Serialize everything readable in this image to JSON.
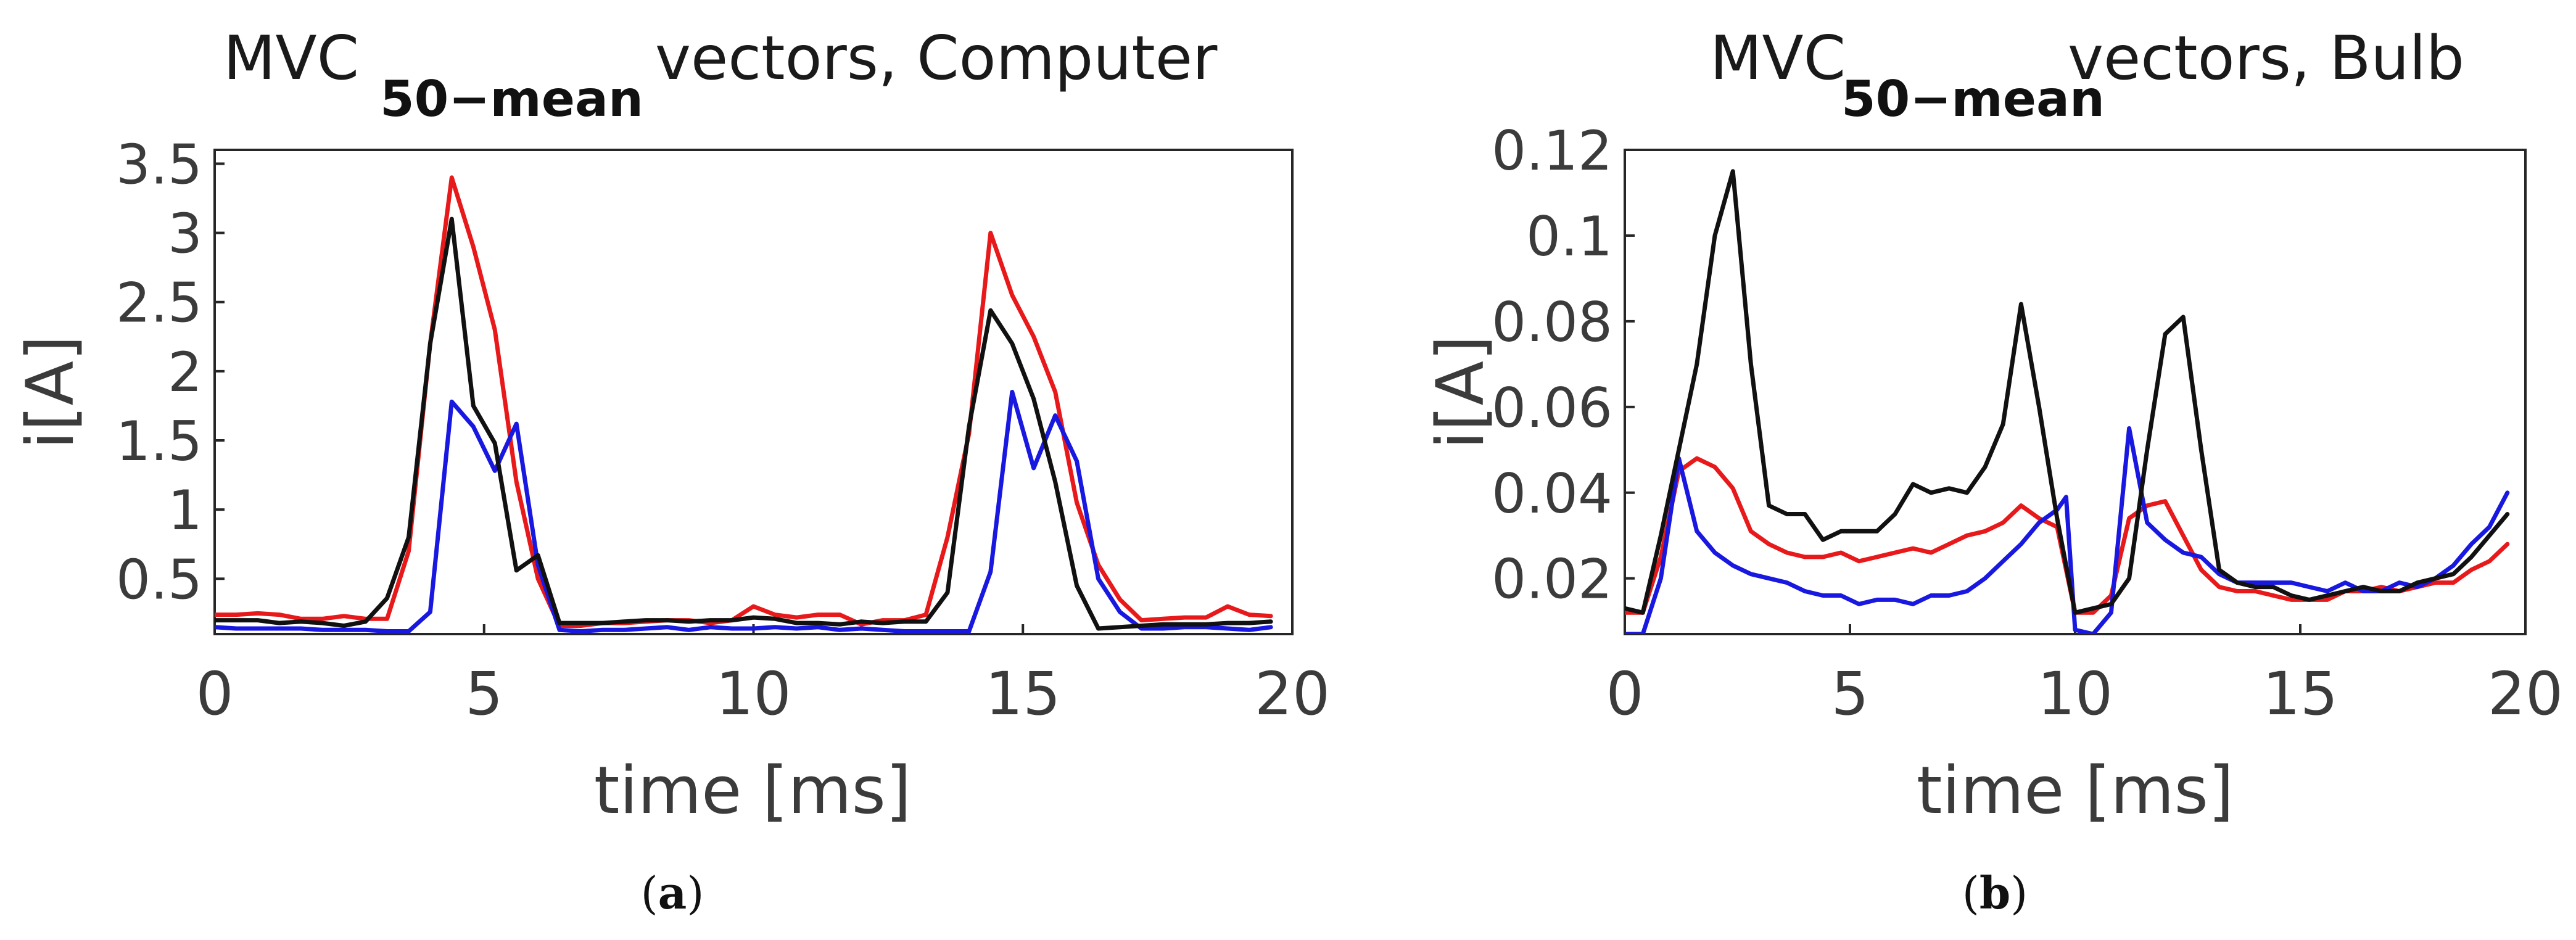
{
  "chart_data": [
    {
      "type": "line",
      "title_main": "MVC",
      "title_sub": "50−mean",
      "title_tail": "vectors, Computer",
      "xlabel": "time [ms]",
      "ylabel": "i[A]",
      "caption": "(a)",
      "xlim": [
        0,
        20
      ],
      "ylim": [
        0.1,
        3.6
      ],
      "xticks": [
        0,
        5,
        10,
        15,
        20
      ],
      "xtick_labels": [
        "0",
        "5",
        "10",
        "15",
        "20"
      ],
      "yticks": [
        0.5,
        1,
        1.5,
        2,
        2.5,
        3,
        3.5
      ],
      "ytick_labels": [
        "0.5",
        "1",
        "1.5",
        "2",
        "2.5",
        "3",
        "3.5"
      ],
      "grid": false,
      "series": [
        {
          "name": "red",
          "color": "#e8191a",
          "x": [
            0,
            0.4,
            0.8,
            1.2,
            1.6,
            2,
            2.4,
            2.8,
            3.2,
            3.6,
            4,
            4.4,
            4.8,
            5.2,
            5.6,
            6,
            6.4,
            6.8,
            7.2,
            7.6,
            8,
            8.4,
            8.8,
            9.2,
            9.6,
            10,
            10.4,
            10.8,
            11.2,
            11.6,
            12,
            12.4,
            12.8,
            13.2,
            13.6,
            14,
            14.4,
            14.8,
            15.2,
            15.6,
            16,
            16.4,
            16.8,
            17.2,
            17.6,
            18,
            18.4,
            18.8,
            19.2,
            19.6
          ],
          "y": [
            0.24,
            0.24,
            0.25,
            0.24,
            0.21,
            0.21,
            0.23,
            0.21,
            0.21,
            0.7,
            2.2,
            3.4,
            2.9,
            2.3,
            1.2,
            0.5,
            0.16,
            0.16,
            0.18,
            0.18,
            0.19,
            0.2,
            0.2,
            0.18,
            0.2,
            0.3,
            0.24,
            0.22,
            0.24,
            0.24,
            0.17,
            0.2,
            0.2,
            0.24,
            0.8,
            1.55,
            3.0,
            2.55,
            2.25,
            1.85,
            1.05,
            0.6,
            0.35,
            0.2,
            0.21,
            0.22,
            0.22,
            0.3,
            0.24,
            0.23
          ]
        },
        {
          "name": "blue",
          "color": "#1818e0",
          "x": [
            0,
            0.4,
            0.8,
            1.2,
            1.6,
            2,
            2.4,
            2.8,
            3.2,
            3.6,
            4,
            4.4,
            4.8,
            5.2,
            5.6,
            6,
            6.4,
            6.8,
            7.2,
            7.6,
            8,
            8.4,
            8.8,
            9.2,
            9.6,
            10,
            10.4,
            10.8,
            11.2,
            11.6,
            12,
            12.4,
            12.8,
            13.2,
            13.6,
            14,
            14.4,
            14.8,
            15.2,
            15.6,
            16,
            16.4,
            16.8,
            17.2,
            17.6,
            18,
            18.4,
            18.8,
            19.2,
            19.6
          ],
          "y": [
            0.15,
            0.14,
            0.14,
            0.14,
            0.14,
            0.13,
            0.13,
            0.13,
            0.12,
            0.12,
            0.26,
            1.78,
            1.6,
            1.28,
            1.62,
            0.6,
            0.13,
            0.12,
            0.13,
            0.13,
            0.14,
            0.15,
            0.13,
            0.15,
            0.14,
            0.14,
            0.15,
            0.14,
            0.15,
            0.13,
            0.14,
            0.13,
            0.12,
            0.12,
            0.12,
            0.12,
            0.55,
            1.85,
            1.3,
            1.68,
            1.35,
            0.5,
            0.26,
            0.14,
            0.14,
            0.15,
            0.15,
            0.14,
            0.13,
            0.15
          ]
        },
        {
          "name": "black",
          "color": "#111111",
          "x": [
            0,
            0.4,
            0.8,
            1.2,
            1.6,
            2,
            2.4,
            2.8,
            3.2,
            3.6,
            4,
            4.4,
            4.8,
            5.2,
            5.6,
            6,
            6.4,
            6.8,
            7.2,
            7.6,
            8,
            8.4,
            8.8,
            9.2,
            9.6,
            10,
            10.4,
            10.8,
            11.2,
            11.6,
            12,
            12.4,
            12.8,
            13.2,
            13.6,
            14,
            14.4,
            14.8,
            15.2,
            15.6,
            16,
            16.4,
            16.8,
            17.2,
            17.6,
            18,
            18.4,
            18.8,
            19.2,
            19.6
          ],
          "y": [
            0.2,
            0.2,
            0.2,
            0.18,
            0.19,
            0.18,
            0.16,
            0.19,
            0.36,
            0.8,
            2.2,
            3.1,
            1.75,
            1.48,
            0.56,
            0.67,
            0.18,
            0.18,
            0.18,
            0.19,
            0.2,
            0.2,
            0.19,
            0.2,
            0.2,
            0.22,
            0.21,
            0.18,
            0.18,
            0.17,
            0.19,
            0.18,
            0.19,
            0.19,
            0.4,
            1.6,
            2.44,
            2.2,
            1.8,
            1.2,
            0.45,
            0.14,
            0.15,
            0.16,
            0.17,
            0.17,
            0.17,
            0.18,
            0.18,
            0.19
          ]
        }
      ]
    },
    {
      "type": "line",
      "title_main": "MVC",
      "title_sub": "50−mean",
      "title_tail": "vectors, Bulb",
      "xlabel": "time [ms]",
      "ylabel": "i[A]",
      "caption": "(b)",
      "xlim": [
        0,
        20
      ],
      "ylim": [
        0.007,
        0.12
      ],
      "xticks": [
        0,
        5,
        10,
        15,
        20
      ],
      "xtick_labels": [
        "0",
        "5",
        "10",
        "15",
        "20"
      ],
      "yticks": [
        0.02,
        0.04,
        0.06,
        0.08,
        0.1,
        0.12
      ],
      "ytick_labels": [
        "0.02",
        "0.04",
        "0.06",
        "0.08",
        "0.1",
        "0.12"
      ],
      "grid": false,
      "series": [
        {
          "name": "red",
          "color": "#e8191a",
          "x": [
            0,
            0.4,
            0.8,
            1.2,
            1.6,
            2,
            2.4,
            2.8,
            3.2,
            3.6,
            4,
            4.4,
            4.8,
            5.2,
            5.6,
            6,
            6.4,
            6.8,
            7.2,
            7.6,
            8,
            8.4,
            8.8,
            9.2,
            9.6,
            10,
            10.4,
            10.8,
            11.2,
            11.6,
            12,
            12.4,
            12.8,
            13.2,
            13.6,
            14,
            14.4,
            14.8,
            15.2,
            15.6,
            16,
            16.4,
            16.8,
            17.2,
            17.6,
            18,
            18.4,
            18.8,
            19.2,
            19.6
          ],
          "y": [
            0.012,
            0.012,
            0.025,
            0.045,
            0.048,
            0.046,
            0.041,
            0.031,
            0.028,
            0.026,
            0.025,
            0.025,
            0.026,
            0.024,
            0.025,
            0.026,
            0.027,
            0.026,
            0.028,
            0.03,
            0.031,
            0.033,
            0.037,
            0.034,
            0.032,
            0.012,
            0.012,
            0.016,
            0.034,
            0.037,
            0.038,
            0.03,
            0.022,
            0.018,
            0.017,
            0.017,
            0.016,
            0.015,
            0.015,
            0.015,
            0.017,
            0.017,
            0.018,
            0.017,
            0.018,
            0.019,
            0.019,
            0.022,
            0.024,
            0.028
          ]
        },
        {
          "name": "blue",
          "color": "#1818e0",
          "x": [
            0,
            0.4,
            0.8,
            1.2,
            1.6,
            2,
            2.4,
            2.8,
            3.2,
            3.6,
            4,
            4.4,
            4.8,
            5.2,
            5.6,
            6,
            6.4,
            6.8,
            7.2,
            7.6,
            8,
            8.4,
            8.8,
            9.2,
            9.6,
            9.8,
            10,
            10.4,
            10.8,
            11.2,
            11.6,
            12,
            12.4,
            12.8,
            13.2,
            13.6,
            14,
            14.4,
            14.8,
            15.2,
            15.6,
            16,
            16.4,
            16.8,
            17.2,
            17.6,
            18,
            18.4,
            18.8,
            19.2,
            19.6
          ],
          "y": [
            0.007,
            0.007,
            0.02,
            0.048,
            0.031,
            0.026,
            0.023,
            0.021,
            0.02,
            0.019,
            0.017,
            0.016,
            0.016,
            0.014,
            0.015,
            0.015,
            0.014,
            0.016,
            0.016,
            0.017,
            0.02,
            0.024,
            0.028,
            0.033,
            0.036,
            0.039,
            0.008,
            0.007,
            0.012,
            0.055,
            0.033,
            0.029,
            0.026,
            0.025,
            0.021,
            0.019,
            0.019,
            0.019,
            0.019,
            0.018,
            0.017,
            0.019,
            0.017,
            0.017,
            0.019,
            0.018,
            0.02,
            0.023,
            0.028,
            0.032,
            0.04
          ]
        },
        {
          "name": "black",
          "color": "#111111",
          "x": [
            0,
            0.4,
            0.8,
            1.2,
            1.6,
            2,
            2.4,
            2.8,
            3.2,
            3.6,
            4,
            4.4,
            4.8,
            5.2,
            5.6,
            6,
            6.4,
            6.8,
            7.2,
            7.6,
            8,
            8.4,
            8.8,
            9.2,
            9.6,
            10,
            10.4,
            10.8,
            11.2,
            11.6,
            12,
            12.4,
            12.8,
            13.2,
            13.6,
            14,
            14.4,
            14.8,
            15.2,
            15.6,
            16,
            16.4,
            16.8,
            17.2,
            17.6,
            18,
            18.4,
            18.8,
            19.2,
            19.6
          ],
          "y": [
            0.013,
            0.012,
            0.03,
            0.05,
            0.07,
            0.1,
            0.115,
            0.07,
            0.037,
            0.035,
            0.035,
            0.029,
            0.031,
            0.031,
            0.031,
            0.035,
            0.042,
            0.04,
            0.041,
            0.04,
            0.046,
            0.056,
            0.084,
            0.06,
            0.034,
            0.012,
            0.013,
            0.014,
            0.02,
            0.05,
            0.077,
            0.081,
            0.05,
            0.022,
            0.019,
            0.018,
            0.018,
            0.016,
            0.015,
            0.016,
            0.017,
            0.018,
            0.017,
            0.017,
            0.019,
            0.02,
            0.021,
            0.025,
            0.03,
            0.035
          ]
        }
      ]
    }
  ]
}
